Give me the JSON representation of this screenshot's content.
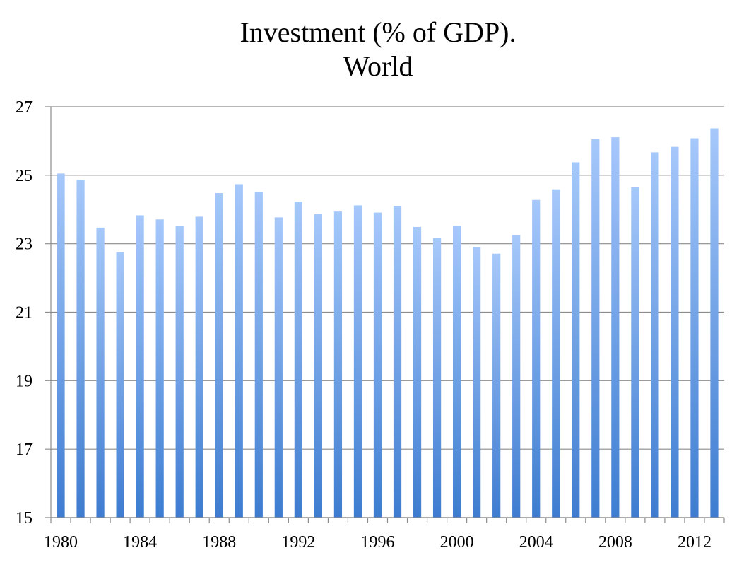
{
  "chart_data": {
    "type": "bar",
    "title": [
      "Investment (% of GDP).",
      "World"
    ],
    "xlabel": "",
    "ylabel": "",
    "ylim": [
      15,
      27
    ],
    "yticks": [
      "15",
      "17",
      "19",
      "21",
      "23",
      "25",
      "27"
    ],
    "grid": true,
    "legend": "none",
    "bar_color_top": "#a6c8fb",
    "bar_color_bottom": "#3d7cd0",
    "categories": [
      "1980",
      "1981",
      "1982",
      "1983",
      "1984",
      "1985",
      "1986",
      "1987",
      "1988",
      "1989",
      "1990",
      "1991",
      "1992",
      "1993",
      "1994",
      "1995",
      "1996",
      "1997",
      "1998",
      "1999",
      "2000",
      "2001",
      "2002",
      "2003",
      "2004",
      "2005",
      "2006",
      "2007",
      "2008",
      "2009",
      "2010",
      "2011",
      "2012",
      "2013"
    ],
    "xtick_labels": [
      "1980",
      "1984",
      "1988",
      "1992",
      "1996",
      "2000",
      "2004",
      "2008",
      "2012"
    ],
    "values": [
      25.05,
      24.87,
      23.47,
      22.75,
      23.83,
      23.71,
      23.51,
      23.79,
      24.48,
      24.74,
      24.51,
      23.77,
      24.23,
      23.86,
      23.94,
      24.12,
      23.91,
      24.1,
      23.49,
      23.16,
      23.52,
      22.91,
      22.71,
      23.26,
      24.28,
      24.59,
      25.38,
      26.05,
      26.11,
      24.65,
      25.67,
      25.83,
      26.08,
      26.37
    ]
  }
}
